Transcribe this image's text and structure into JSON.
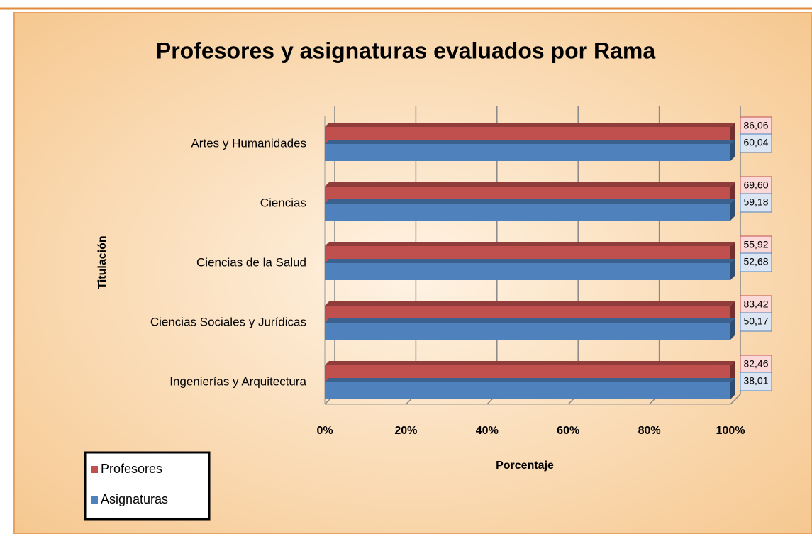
{
  "chart_data": {
    "type": "bar",
    "orientation": "horizontal",
    "stacking": "percent",
    "title": "Profesores y asignaturas evaluados por Rama",
    "x_label": "Porcentaje",
    "y_label": "Titulación",
    "categories": [
      "Artes y Humanidades",
      "Ciencias",
      "Ciencias de la Salud",
      "Ciencias Sociales y Jurídicas",
      "Ingenierías y Arquitectura"
    ],
    "series": [
      {
        "name": "Profesores",
        "color": "#c0504d",
        "values": [
          86.06,
          69.6,
          55.92,
          83.42,
          82.46
        ],
        "value_labels": [
          "86,06",
          "69,60",
          "55,92",
          "83,42",
          "82,46"
        ]
      },
      {
        "name": "Asignaturas",
        "color": "#4f81bd",
        "values": [
          60.04,
          59.18,
          52.68,
          50.17,
          38.01
        ],
        "value_labels": [
          "60,04",
          "59,18",
          "52,68",
          "50,17",
          "38,01"
        ]
      }
    ],
    "xlim": [
      0,
      100
    ],
    "xticks": [
      {
        "value": 0,
        "label": "0%"
      },
      {
        "value": 20,
        "label": "20%"
      },
      {
        "value": 40,
        "label": "40%"
      },
      {
        "value": 60,
        "label": "60%"
      },
      {
        "value": 80,
        "label": "80%"
      },
      {
        "value": 100,
        "label": "100%"
      }
    ],
    "grid": true,
    "legend": "bottom-left"
  }
}
